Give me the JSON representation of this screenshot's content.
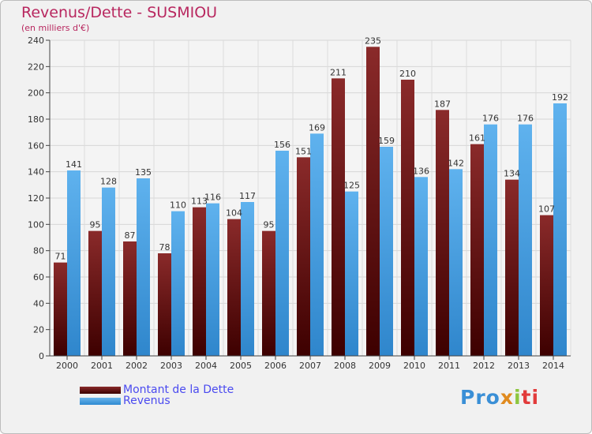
{
  "header": {
    "title": "Revenus/Dette - SUSMIOU",
    "subtitle": "(en milliers d'€)"
  },
  "legend": {
    "items": [
      {
        "label": "Montant de la Dette",
        "color": "#6b1a1a"
      },
      {
        "label": "Revenus",
        "color": "#3d9ee0"
      }
    ]
  },
  "logo": {
    "parts": [
      "Pro",
      "x",
      "i",
      "ti"
    ]
  },
  "chart_data": {
    "type": "bar",
    "title": "Revenus/Dette - SUSMIOU",
    "subtitle": "(en milliers d'€)",
    "categories": [
      "2000",
      "2001",
      "2002",
      "2003",
      "2004",
      "2005",
      "2006",
      "2007",
      "2008",
      "2009",
      "2010",
      "2011",
      "2012",
      "2013",
      "2014"
    ],
    "series": [
      {
        "name": "Montant de la Dette",
        "color": "#6b1a1a",
        "values": [
          71,
          95,
          87,
          78,
          113,
          104,
          95,
          151,
          211,
          235,
          210,
          187,
          161,
          134,
          107
        ]
      },
      {
        "name": "Revenus",
        "color": "#3d9ee0",
        "values": [
          141,
          128,
          135,
          110,
          116,
          117,
          156,
          169,
          125,
          159,
          136,
          142,
          176,
          176,
          192
        ]
      }
    ],
    "ylim": [
      0,
      240
    ],
    "yticks": [
      0,
      20,
      40,
      60,
      80,
      100,
      120,
      140,
      160,
      180,
      200,
      220,
      240
    ],
    "grid": true,
    "legend_position": "bottom-left"
  }
}
